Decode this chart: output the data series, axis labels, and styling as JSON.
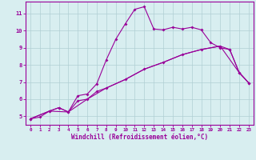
{
  "xlabel": "Windchill (Refroidissement éolien,°C)",
  "bg_color": "#d8eef0",
  "grid_color": "#b0cfd4",
  "line_color": "#990099",
  "xlim": [
    -0.5,
    23.5
  ],
  "ylim": [
    4.5,
    11.7
  ],
  "xticks": [
    0,
    1,
    2,
    3,
    4,
    5,
    6,
    7,
    8,
    9,
    10,
    11,
    12,
    13,
    14,
    15,
    16,
    17,
    18,
    19,
    20,
    21,
    22,
    23
  ],
  "yticks": [
    5,
    6,
    7,
    8,
    9,
    10,
    11
  ],
  "line1_x": [
    0,
    1,
    2,
    3,
    4,
    5,
    6,
    7,
    8,
    9,
    10,
    11,
    12,
    13,
    14,
    15,
    16,
    17,
    18,
    19,
    20,
    21,
    22,
    23
  ],
  "line1_y": [
    4.85,
    4.95,
    5.3,
    5.5,
    5.25,
    6.2,
    6.3,
    6.9,
    8.3,
    9.5,
    10.4,
    11.25,
    11.4,
    10.1,
    10.05,
    10.2,
    10.1,
    10.2,
    10.05,
    9.3,
    9.0,
    8.9,
    7.55,
    6.95
  ],
  "line2_x": [
    0,
    2,
    3,
    4,
    5,
    6,
    7,
    8,
    10,
    12,
    14,
    16,
    18,
    20,
    21,
    22,
    23
  ],
  "line2_y": [
    4.85,
    5.3,
    5.5,
    5.25,
    5.9,
    6.0,
    6.45,
    6.65,
    7.15,
    7.75,
    8.15,
    8.6,
    8.9,
    9.1,
    8.9,
    7.55,
    6.95
  ],
  "line3_x": [
    0,
    2,
    4,
    6,
    8,
    10,
    12,
    14,
    16,
    18,
    20,
    22,
    23
  ],
  "line3_y": [
    4.85,
    5.3,
    5.25,
    6.0,
    6.65,
    7.15,
    7.75,
    8.15,
    8.6,
    8.9,
    9.1,
    7.55,
    6.95
  ]
}
